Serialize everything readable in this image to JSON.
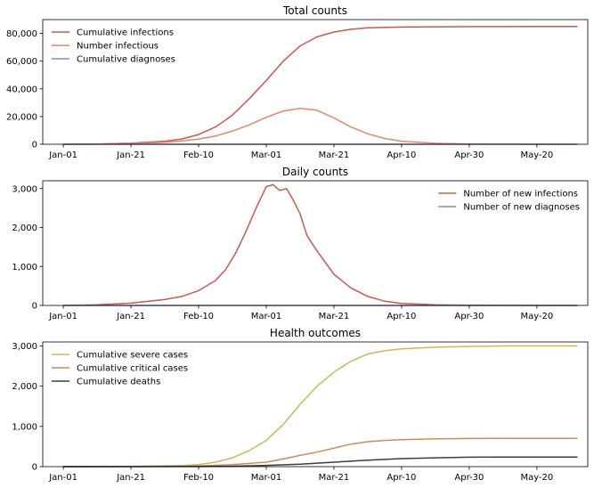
{
  "chart_data": [
    {
      "type": "line",
      "title": "Total counts",
      "xlabel": "",
      "ylabel": "",
      "x_start": "Jan-01",
      "x_end": "Jun-01",
      "x_ticks": [
        "Jan-01",
        "Jan-21",
        "Feb-10",
        "Mar-01",
        "Mar-21",
        "Apr-10",
        "Apr-30",
        "May-20"
      ],
      "ylim": [
        0,
        90000
      ],
      "y_ticks": [
        0,
        20000,
        40000,
        60000,
        80000
      ],
      "y_tick_labels": [
        "0",
        "20,000",
        "40,000",
        "60,000",
        "80,000"
      ],
      "legend_position": "upper-left",
      "grid": false,
      "series": [
        {
          "name": "Cumulative infections",
          "color": "#c8594e",
          "x": [
            "Jan-01",
            "Jan-11",
            "Jan-21",
            "Jan-31",
            "Feb-05",
            "Feb-10",
            "Feb-15",
            "Feb-20",
            "Feb-25",
            "Mar-01",
            "Mar-06",
            "Mar-11",
            "Mar-16",
            "Mar-21",
            "Mar-26",
            "Mar-31",
            "Apr-10",
            "Apr-20",
            "Apr-30",
            "May-10",
            "May-20",
            "Jun-01"
          ],
          "values": [
            0,
            200,
            800,
            2200,
            3800,
            7000,
            12500,
            21000,
            33000,
            46000,
            60000,
            71000,
            77500,
            81000,
            83000,
            84000,
            84600,
            84800,
            84900,
            84900,
            85000,
            85000
          ]
        },
        {
          "name": "Number infectious",
          "color": "#e9836a",
          "x": [
            "Jan-01",
            "Jan-11",
            "Jan-21",
            "Jan-31",
            "Feb-05",
            "Feb-10",
            "Feb-15",
            "Feb-20",
            "Feb-25",
            "Mar-01",
            "Mar-06",
            "Mar-11",
            "Mar-16",
            "Mar-21",
            "Mar-26",
            "Mar-31",
            "Apr-05",
            "Apr-10",
            "Apr-20",
            "Apr-30",
            "May-10",
            "May-20",
            "Jun-01"
          ],
          "values": [
            0,
            150,
            500,
            1400,
            2300,
            3800,
            6000,
            9500,
            14000,
            19500,
            24000,
            26000,
            24500,
            19000,
            12500,
            7500,
            4200,
            2200,
            700,
            200,
            50,
            20,
            10
          ]
        },
        {
          "name": "Cumulative diagnoses",
          "color": "#8b83c9",
          "x": [
            "Jan-01",
            "Jun-01"
          ],
          "values": [
            0,
            0
          ]
        }
      ]
    },
    {
      "type": "line",
      "title": "Daily counts",
      "xlabel": "",
      "ylabel": "",
      "x_start": "Jan-01",
      "x_end": "Jun-01",
      "x_ticks": [
        "Jan-01",
        "Jan-21",
        "Feb-10",
        "Mar-01",
        "Mar-21",
        "Apr-10",
        "Apr-30",
        "May-20"
      ],
      "ylim": [
        0,
        3200
      ],
      "y_ticks": [
        0,
        1000,
        2000,
        3000
      ],
      "y_tick_labels": [
        "0",
        "1,000",
        "2,000",
        "3,000"
      ],
      "legend_position": "upper-right",
      "grid": false,
      "series": [
        {
          "name": "Number of new infections",
          "color": "#c8594e",
          "x": [
            "Jan-01",
            "Jan-11",
            "Jan-21",
            "Jan-31",
            "Feb-05",
            "Feb-10",
            "Feb-15",
            "Feb-18",
            "Feb-21",
            "Feb-24",
            "Feb-27",
            "Mar-01",
            "Mar-03",
            "Mar-05",
            "Mar-07",
            "Mar-09",
            "Mar-11",
            "Mar-13",
            "Mar-16",
            "Mar-21",
            "Mar-26",
            "Mar-31",
            "Apr-05",
            "Apr-10",
            "Apr-20",
            "Apr-30",
            "May-10",
            "May-20",
            "Jun-01"
          ],
          "values": [
            0,
            15,
            60,
            150,
            230,
            380,
            640,
            920,
            1350,
            1900,
            2500,
            3050,
            3100,
            2950,
            3000,
            2700,
            2350,
            1800,
            1400,
            800,
            450,
            230,
            110,
            50,
            15,
            5,
            2,
            1,
            0
          ]
        },
        {
          "name": "Number of new diagnoses",
          "color": "#8b83c9",
          "x": [
            "Jan-01",
            "Jun-01"
          ],
          "values": [
            0,
            0
          ]
        }
      ]
    },
    {
      "type": "line",
      "title": "Health outcomes",
      "xlabel": "",
      "ylabel": "",
      "x_start": "Jan-01",
      "x_end": "Jun-01",
      "x_ticks": [
        "Jan-01",
        "Jan-21",
        "Feb-10",
        "Mar-01",
        "Mar-21",
        "Apr-10",
        "Apr-30",
        "May-20"
      ],
      "ylim": [
        0,
        3100
      ],
      "y_ticks": [
        0,
        1000,
        2000,
        3000
      ],
      "y_tick_labels": [
        "0",
        "1,000",
        "2,000",
        "3,000"
      ],
      "legend_position": "upper-left",
      "grid": false,
      "series": [
        {
          "name": "Cumulative severe cases",
          "color": "#d4b25f",
          "x": [
            "Jan-01",
            "Jan-21",
            "Feb-05",
            "Feb-10",
            "Feb-15",
            "Feb-20",
            "Feb-25",
            "Mar-01",
            "Mar-06",
            "Mar-11",
            "Mar-16",
            "Mar-21",
            "Mar-26",
            "Mar-31",
            "Apr-05",
            "Apr-10",
            "Apr-20",
            "Apr-30",
            "May-10",
            "May-20",
            "Jun-01"
          ],
          "values": [
            0,
            5,
            25,
            50,
            110,
            220,
            400,
            650,
            1050,
            1550,
            2000,
            2350,
            2620,
            2800,
            2880,
            2930,
            2970,
            2990,
            3000,
            3000,
            3000
          ]
        },
        {
          "name": "Cumulative critical cases",
          "color": "#cc8c55",
          "x": [
            "Jan-01",
            "Jan-21",
            "Feb-10",
            "Feb-20",
            "Mar-01",
            "Mar-06",
            "Mar-11",
            "Mar-16",
            "Mar-21",
            "Mar-26",
            "Mar-31",
            "Apr-05",
            "Apr-10",
            "Apr-20",
            "Apr-30",
            "May-10",
            "May-20",
            "Jun-01"
          ],
          "values": [
            0,
            2,
            15,
            50,
            110,
            190,
            280,
            360,
            460,
            560,
            620,
            650,
            670,
            690,
            700,
            705,
            705,
            705
          ]
        },
        {
          "name": "Cumulative deaths",
          "color": "#3d3d3d",
          "x": [
            "Jan-01",
            "Feb-10",
            "Feb-20",
            "Mar-01",
            "Mar-11",
            "Mar-21",
            "Mar-31",
            "Apr-10",
            "Apr-20",
            "Apr-30",
            "May-10",
            "May-20",
            "Jun-01"
          ],
          "values": [
            0,
            2,
            10,
            30,
            60,
            110,
            160,
            200,
            220,
            235,
            240,
            240,
            240
          ]
        }
      ]
    }
  ]
}
